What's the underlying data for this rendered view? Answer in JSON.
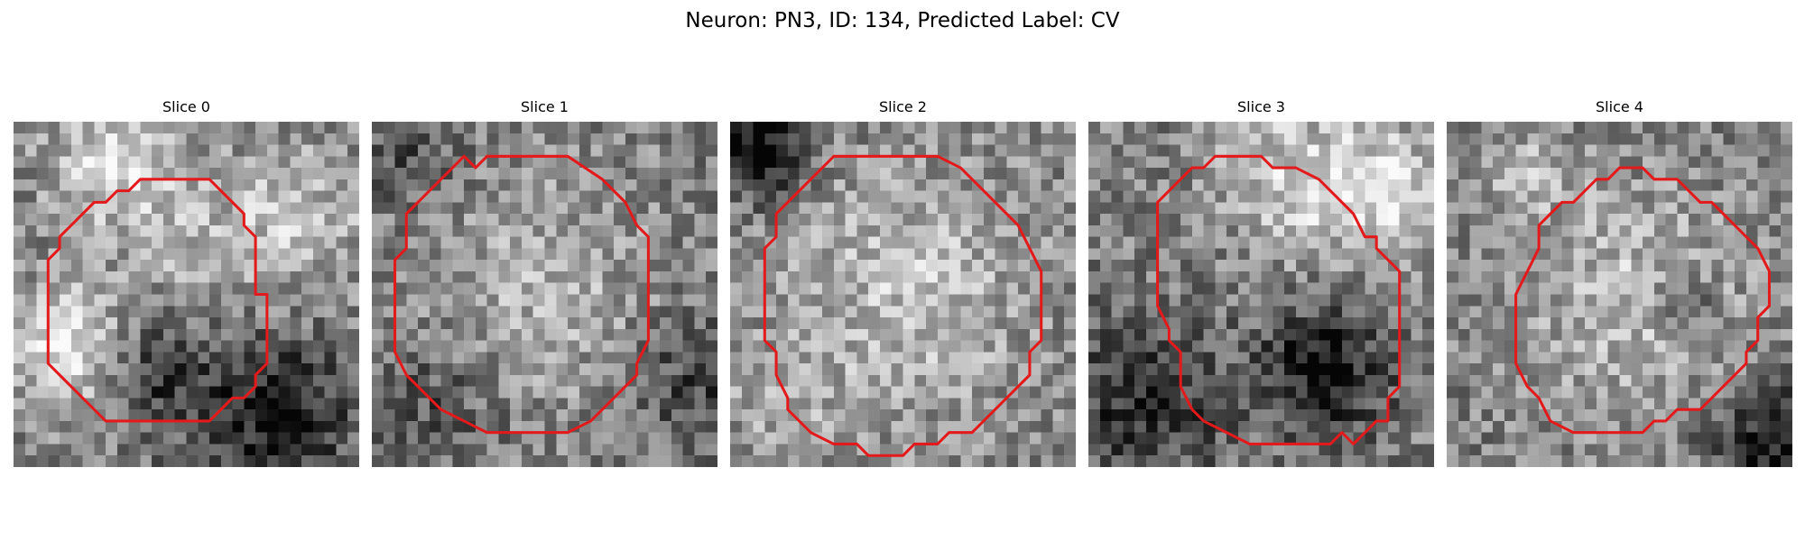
{
  "figure": {
    "title": "Neuron: PN3, ID: 134, Predicted Label: CV"
  },
  "panels": [
    {
      "title": "Slice 0",
      "seed": 11
    },
    {
      "title": "Slice 1",
      "seed": 23
    },
    {
      "title": "Slice 2",
      "seed": 37
    },
    {
      "title": "Slice 3",
      "seed": 41
    },
    {
      "title": "Slice 4",
      "seed": 53
    }
  ],
  "style": {
    "contour_color": "#e31a1c",
    "colormap": "gray"
  }
}
